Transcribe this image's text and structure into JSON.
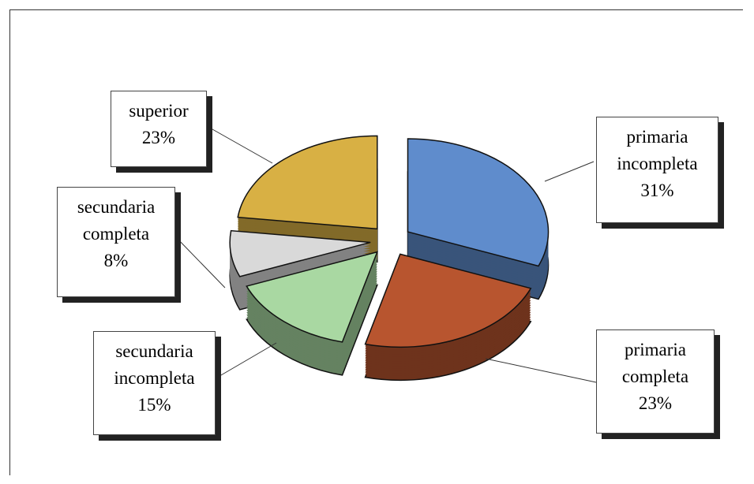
{
  "chart_data": {
    "type": "pie",
    "categories": [
      "primaria incompleta",
      "primaria completa",
      "secundaria incompleta",
      "secundaria completa",
      "superior"
    ],
    "values": [
      31,
      23,
      15,
      8,
      23
    ],
    "value_labels": [
      "31%",
      "23%",
      "15%",
      "8%",
      "23%"
    ],
    "colors": [
      "#5f8ccc",
      "#b8552f",
      "#a9d8a2",
      "#d9d9d9",
      "#d8b044"
    ]
  }
}
